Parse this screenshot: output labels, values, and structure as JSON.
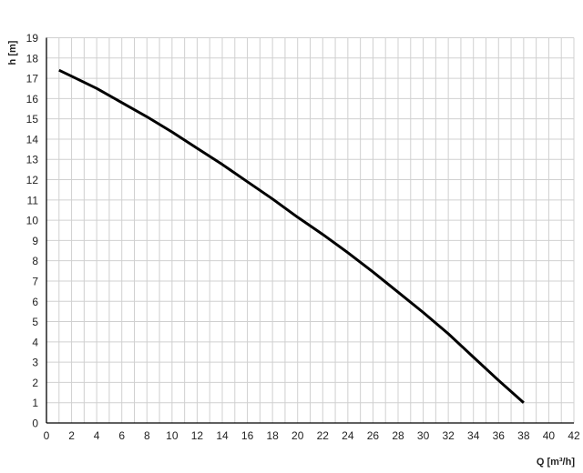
{
  "chart_data": {
    "type": "line",
    "title": "",
    "xlabel": "Q [m³/h]",
    "ylabel": "h [m]",
    "xlim": [
      0,
      42
    ],
    "ylim": [
      0,
      19
    ],
    "xticks": [
      0,
      2,
      4,
      6,
      8,
      10,
      12,
      14,
      16,
      18,
      20,
      22,
      24,
      26,
      28,
      30,
      32,
      34,
      36,
      38,
      40,
      42
    ],
    "yticks": [
      0,
      1,
      2,
      3,
      4,
      5,
      6,
      7,
      8,
      9,
      10,
      11,
      12,
      13,
      14,
      15,
      16,
      17,
      18,
      19
    ],
    "grid": true,
    "grid_step": {
      "x": 1,
      "y": 1
    },
    "colors": {
      "line": "#000000",
      "grid": "#d0d0d0",
      "axis": "#000000"
    },
    "series": [
      {
        "x": [
          1,
          2,
          4,
          6,
          8,
          10,
          12,
          14,
          16,
          18,
          20,
          22,
          24,
          26,
          28,
          30,
          32,
          34,
          36,
          38
        ],
        "y": [
          17.4,
          17.1,
          16.5,
          15.8,
          15.1,
          14.35,
          13.55,
          12.75,
          11.9,
          11.05,
          10.15,
          9.3,
          8.4,
          7.45,
          6.45,
          5.45,
          4.4,
          3.25,
          2.1,
          1.0
        ]
      }
    ]
  }
}
